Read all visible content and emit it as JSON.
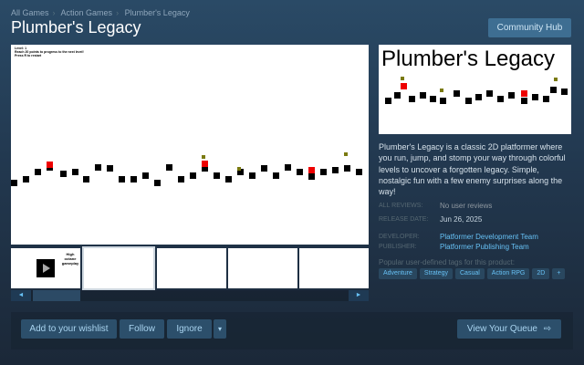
{
  "breadcrumbs": [
    "All Games",
    "Action Games",
    "Plumber's Legacy"
  ],
  "title": "Plumber's Legacy",
  "community_hub": "Community Hub",
  "screenshot": {
    "hud": [
      "Level: 1",
      "Reach 20 points to progress to the next level!",
      "Press R to restart"
    ]
  },
  "thumbnails": {
    "video_label": "High octane gameplay",
    "count": 5,
    "selected": 1
  },
  "capsule_title": "Plumber's Legacy",
  "description": "Plumber's Legacy is a classic 2D platformer where you run, jump, and stomp your way through colorful levels to uncover a forgotten legacy. Simple, nostalgic fun with a few enemy surprises along the way!",
  "info": {
    "reviews_label": "All Reviews:",
    "reviews_value": "No user reviews",
    "release_label": "Release Date:",
    "release_value": "Jun 26, 2025",
    "developer_label": "Developer:",
    "developer_value": "Platformer Development Team",
    "publisher_label": "Publisher:",
    "publisher_value": "Platformer Publishing Team"
  },
  "tags_label": "Popular user-defined tags for this product:",
  "tags": [
    "Adventure",
    "Strategy",
    "Casual",
    "Action RPG",
    "2D",
    "+"
  ],
  "actions": {
    "wishlist": "Add to your wishlist",
    "follow": "Follow",
    "ignore": "Ignore",
    "dropdown": "▾",
    "queue": "View Your Queue",
    "queue_icon": "⇨"
  },
  "scroll": {
    "left": "◄",
    "right": "►"
  }
}
